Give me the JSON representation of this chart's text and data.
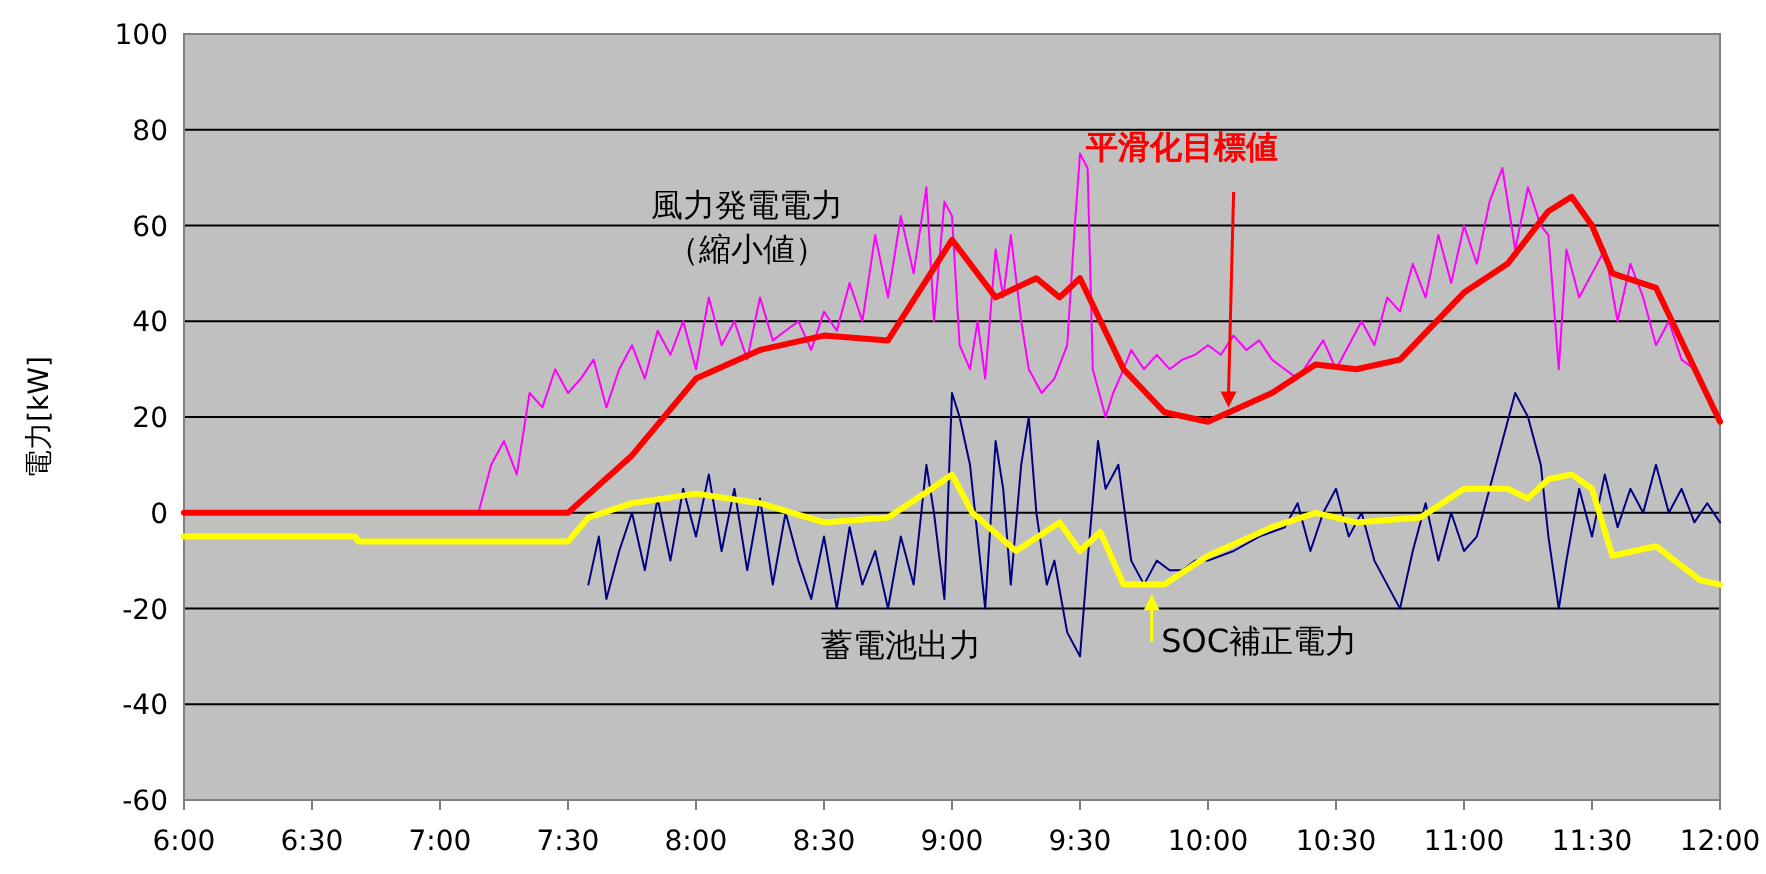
{
  "chart_data": {
    "type": "line",
    "ylabel": "電力[kW]",
    "xlim": [
      6,
      12
    ],
    "ylim": [
      -60,
      100
    ],
    "xticks": [
      {
        "value": 6,
        "label": "6:00"
      },
      {
        "value": 6.5,
        "label": "6:30"
      },
      {
        "value": 7,
        "label": "7:00"
      },
      {
        "value": 7.5,
        "label": "7:30"
      },
      {
        "value": 8,
        "label": "8:00"
      },
      {
        "value": 8.5,
        "label": "8:30"
      },
      {
        "value": 9,
        "label": "9:00"
      },
      {
        "value": 9.5,
        "label": "9:30"
      },
      {
        "value": 10,
        "label": "10:00"
      },
      {
        "value": 10.5,
        "label": "10:30"
      },
      {
        "value": 11,
        "label": "11:00"
      },
      {
        "value": 11.5,
        "label": "11:30"
      },
      {
        "value": 12,
        "label": "12:00"
      }
    ],
    "yticks": [
      -60,
      -40,
      -20,
      0,
      20,
      40,
      60,
      80,
      100
    ],
    "grid": "y",
    "series": [
      {
        "name": "風力発電電力（縮小値）",
        "color": "#ff00ff",
        "x": [
          7.0,
          7.15,
          7.2,
          7.25,
          7.3,
          7.35,
          7.4,
          7.45,
          7.5,
          7.55,
          7.6,
          7.65,
          7.7,
          7.75,
          7.8,
          7.85,
          7.9,
          7.95,
          8.0,
          8.05,
          8.1,
          8.15,
          8.2,
          8.25,
          8.3,
          8.35,
          8.4,
          8.45,
          8.5,
          8.55,
          8.6,
          8.65,
          8.7,
          8.75,
          8.8,
          8.85,
          8.9,
          8.93,
          8.97,
          9.0,
          9.03,
          9.07,
          9.1,
          9.13,
          9.17,
          9.2,
          9.23,
          9.27,
          9.3,
          9.35,
          9.4,
          9.45,
          9.48,
          9.5,
          9.53,
          9.55,
          9.6,
          9.63,
          9.67,
          9.7,
          9.75,
          9.8,
          9.85,
          9.9,
          9.95,
          10.0,
          10.05,
          10.1,
          10.15,
          10.2,
          10.25,
          10.3,
          10.35,
          10.4,
          10.45,
          10.5,
          10.55,
          10.6,
          10.65,
          10.7,
          10.75,
          10.8,
          10.85,
          10.9,
          10.95,
          11.0,
          11.05,
          11.1,
          11.15,
          11.2,
          11.25,
          11.3,
          11.33,
          11.37,
          11.4,
          11.45,
          11.5,
          11.55,
          11.6,
          11.65,
          11.7,
          11.75,
          11.8,
          11.85,
          11.9,
          11.95,
          12.0
        ],
        "values": [
          0,
          0,
          10,
          15,
          8,
          25,
          22,
          30,
          25,
          28,
          32,
          22,
          30,
          35,
          28,
          38,
          33,
          40,
          30,
          45,
          35,
          40,
          32,
          45,
          36,
          38,
          40,
          34,
          42,
          38,
          48,
          40,
          58,
          45,
          62,
          50,
          68,
          40,
          65,
          62,
          35,
          30,
          40,
          28,
          55,
          45,
          58,
          40,
          30,
          25,
          28,
          35,
          60,
          75,
          72,
          30,
          20,
          25,
          30,
          34,
          30,
          33,
          30,
          32,
          33,
          35,
          33,
          37,
          34,
          36,
          32,
          30,
          28,
          32,
          36,
          30,
          35,
          40,
          35,
          45,
          42,
          52,
          45,
          58,
          48,
          60,
          52,
          65,
          72,
          55,
          68,
          60,
          58,
          30,
          55,
          45,
          50,
          55,
          40,
          52,
          45,
          35,
          40,
          32,
          30,
          25,
          20
        ]
      },
      {
        "name": "平滑化目標値",
        "color": "#ff0000",
        "x": [
          6,
          7.5,
          7.75,
          8,
          8.25,
          8.5,
          8.75,
          9,
          9.17,
          9.33,
          9.42,
          9.5,
          9.67,
          9.83,
          10,
          10.25,
          10.42,
          10.58,
          10.75,
          11,
          11.17,
          11.33,
          11.42,
          11.5,
          11.58,
          11.75,
          12
        ],
        "values": [
          0,
          0,
          12,
          28,
          34,
          37,
          36,
          57,
          45,
          49,
          45,
          49,
          30,
          21,
          19,
          25,
          31,
          30,
          32,
          46,
          52,
          63,
          66,
          60,
          50,
          47,
          19
        ]
      },
      {
        "name": "蓄電池出力",
        "color": "#000080",
        "x": [
          7.58,
          7.62,
          7.65,
          7.7,
          7.75,
          7.8,
          7.85,
          7.9,
          7.95,
          8.0,
          8.05,
          8.1,
          8.15,
          8.2,
          8.25,
          8.3,
          8.35,
          8.4,
          8.45,
          8.5,
          8.55,
          8.6,
          8.65,
          8.7,
          8.75,
          8.8,
          8.85,
          8.9,
          8.93,
          8.97,
          9.0,
          9.03,
          9.07,
          9.1,
          9.13,
          9.17,
          9.2,
          9.23,
          9.27,
          9.3,
          9.33,
          9.37,
          9.4,
          9.45,
          9.5,
          9.53,
          9.57,
          9.6,
          9.65,
          9.7,
          9.75,
          9.8,
          9.85,
          9.9,
          9.95,
          10.0,
          10.1,
          10.2,
          10.3,
          10.35,
          10.4,
          10.45,
          10.5,
          10.55,
          10.6,
          10.65,
          10.7,
          10.75,
          10.8,
          10.85,
          10.9,
          10.95,
          11.0,
          11.05,
          11.1,
          11.15,
          11.2,
          11.25,
          11.3,
          11.33,
          11.37,
          11.4,
          11.45,
          11.5,
          11.55,
          11.6,
          11.65,
          11.7,
          11.75,
          11.8,
          11.85,
          11.9,
          11.95,
          12.0
        ],
        "values": [
          -15,
          -5,
          -18,
          -8,
          0,
          -12,
          3,
          -10,
          5,
          -5,
          8,
          -8,
          5,
          -12,
          3,
          -15,
          0,
          -10,
          -18,
          -5,
          -20,
          -3,
          -15,
          -8,
          -20,
          -5,
          -15,
          10,
          0,
          -18,
          25,
          20,
          10,
          -5,
          -20,
          15,
          5,
          -15,
          10,
          20,
          0,
          -15,
          -10,
          -25,
          -30,
          -10,
          15,
          5,
          10,
          -10,
          -15,
          -10,
          -12,
          -12,
          -10,
          -10,
          -8,
          -5,
          -3,
          2,
          -8,
          0,
          5,
          -5,
          0,
          -10,
          -15,
          -20,
          -8,
          2,
          -10,
          0,
          -8,
          -5,
          5,
          15,
          25,
          20,
          10,
          -5,
          -20,
          -10,
          5,
          -5,
          8,
          -3,
          5,
          0,
          10,
          0,
          5,
          -2,
          2,
          -2
        ]
      },
      {
        "name": "SOC補正電力",
        "color": "#ffff00",
        "x": [
          6,
          6.67,
          6.68,
          7.5,
          7.58,
          7.75,
          8,
          8.25,
          8.5,
          8.75,
          8.92,
          9,
          9.08,
          9.25,
          9.42,
          9.5,
          9.58,
          9.67,
          9.83,
          10,
          10.25,
          10.42,
          10.58,
          10.83,
          11,
          11.17,
          11.25,
          11.33,
          11.42,
          11.5,
          11.58,
          11.75,
          11.92,
          12
        ],
        "values": [
          -5,
          -5,
          -6,
          -6,
          -1,
          2,
          4,
          2,
          -2,
          -1,
          5,
          8,
          0,
          -8,
          -2,
          -8,
          -4,
          -15,
          -15,
          -9,
          -3,
          0,
          -2,
          -1,
          5,
          5,
          3,
          7,
          8,
          5,
          -9,
          -7,
          -14,
          -15
        ]
      }
    ]
  }
}
